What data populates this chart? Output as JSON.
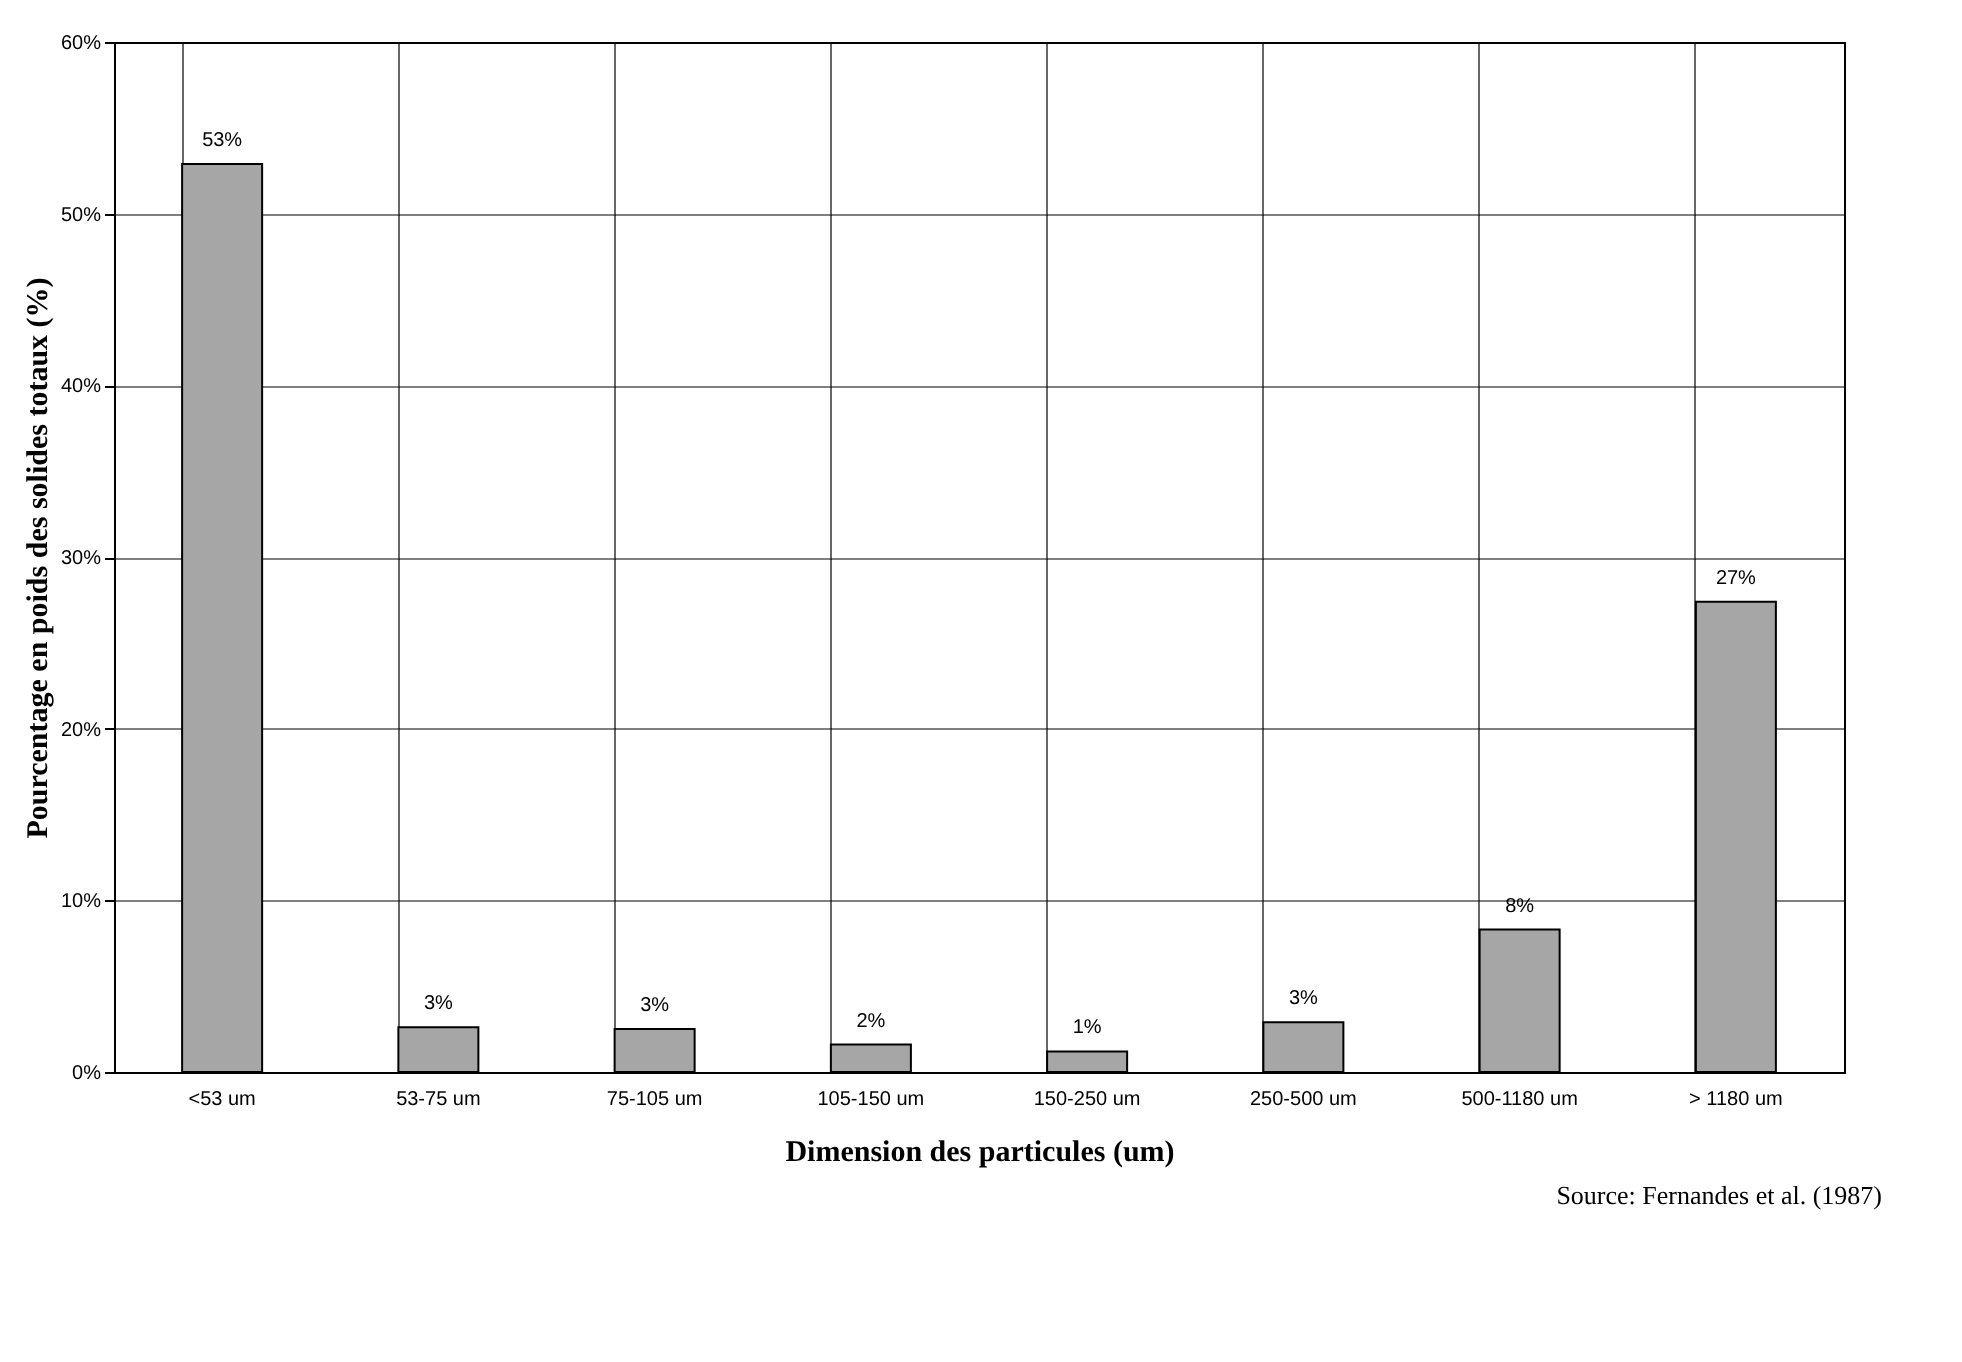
{
  "chart_data": {
    "type": "bar",
    "xlabel": "Dimension des particules (um)",
    "ylabel": "Pourcentage en poids des solides totaux (%)",
    "categories": [
      "<53 um",
      "53-75 um",
      "75-105 um",
      "105-150 um",
      "150-250 um",
      "250-500 um",
      "500-1180 um",
      "> 1180 um"
    ],
    "values": [
      52.9,
      2.6,
      2.5,
      1.6,
      1.2,
      2.9,
      8.3,
      27.4
    ],
    "value_labels": [
      "53%",
      "3%",
      "3%",
      "2%",
      "1%",
      "3%",
      "8%",
      "27%"
    ],
    "color": "#a6a6a6",
    "ylim": [
      0,
      60
    ],
    "yticks": [
      {
        "value": 0,
        "label": "0%"
      },
      {
        "value": 10,
        "label": "10%"
      },
      {
        "value": 20,
        "label": "20%"
      },
      {
        "value": 30,
        "label": "30%"
      },
      {
        "value": 40,
        "label": "40%"
      },
      {
        "value": 50,
        "label": "50%"
      },
      {
        "value": 60,
        "label": "60%"
      }
    ],
    "grid": true,
    "annotations": [
      "Source: Fernandes et al. (1987)"
    ]
  }
}
